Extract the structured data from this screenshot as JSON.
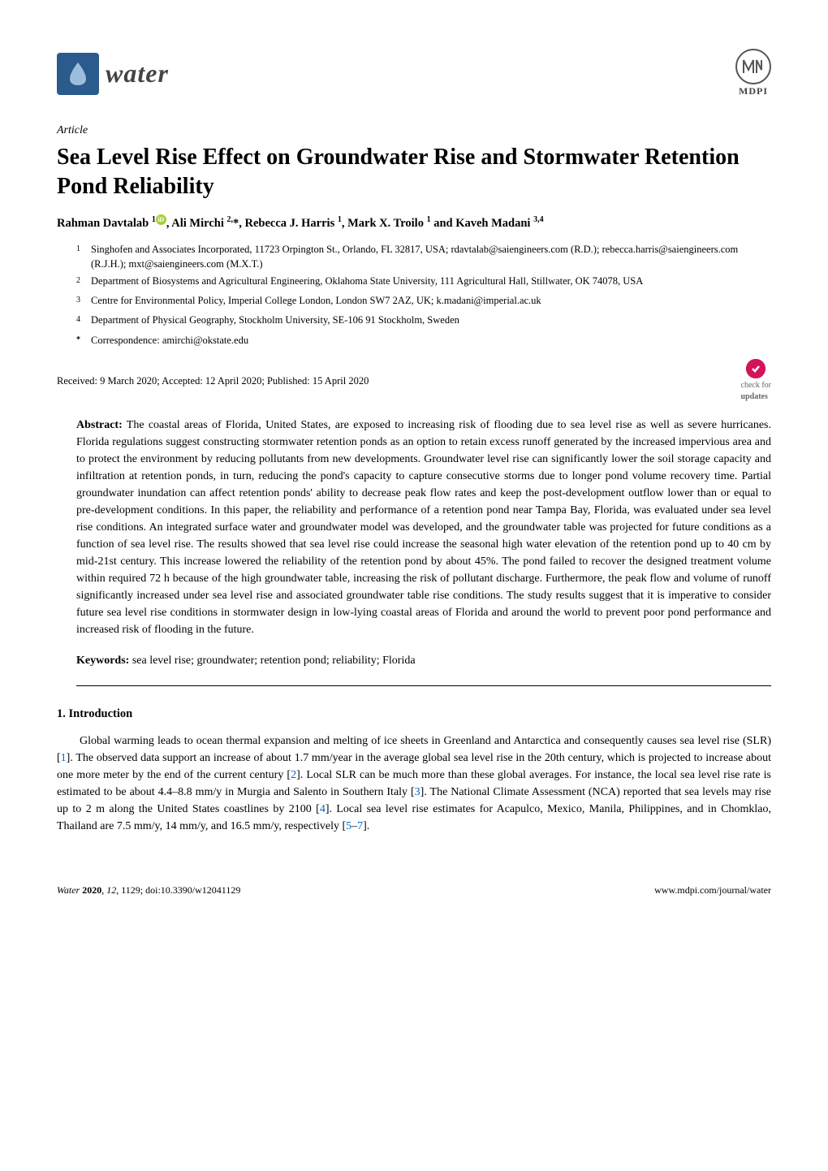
{
  "header": {
    "journal_name": "water",
    "publisher": "MDPI"
  },
  "article": {
    "type": "Article",
    "title": "Sea Level Rise Effect on Groundwater Rise and Stormwater Retention Pond Reliability",
    "authors_html": "Rahman Davtalab <sup>1</sup><span class=\"orcid\">iD</span>, Ali Mirchi <sup>2,</sup>*, Rebecca J. Harris <sup>1</sup>, Mark X. Troilo <sup>1</sup> and Kaveh Madani <sup>3,4</sup>"
  },
  "affiliations": [
    {
      "num": "1",
      "text": "Singhofen and Associates Incorporated, 11723 Orpington St., Orlando, FL 32817, USA; rdavtalab@saiengineers.com (R.D.); rebecca.harris@saiengineers.com (R.J.H.); mxt@saiengineers.com (M.X.T.)"
    },
    {
      "num": "2",
      "text": "Department of Biosystems and Agricultural Engineering, Oklahoma State University, 111 Agricultural Hall, Stillwater, OK 74078, USA"
    },
    {
      "num": "3",
      "text": "Centre for Environmental Policy, Imperial College London, London SW7 2AZ, UK; k.madani@imperial.ac.uk"
    },
    {
      "num": "4",
      "text": "Department of Physical Geography, Stockholm University, SE-106 91 Stockholm, Sweden"
    },
    {
      "num": "*",
      "text": "Correspondence: amirchi@okstate.edu"
    }
  ],
  "dates": "Received: 9 March 2020; Accepted: 12 April 2020; Published: 15 April 2020",
  "check_updates": "check for updates",
  "abstract": {
    "label": "Abstract:",
    "text": " The coastal areas of Florida, United States, are exposed to increasing risk of flooding due to sea level rise as well as severe hurricanes. Florida regulations suggest constructing stormwater retention ponds as an option to retain excess runoff generated by the increased impervious area and to protect the environment by reducing pollutants from new developments. Groundwater level rise can significantly lower the soil storage capacity and infiltration at retention ponds, in turn, reducing the pond's capacity to capture consecutive storms due to longer pond volume recovery time. Partial groundwater inundation can affect retention ponds' ability to decrease peak flow rates and keep the post-development outflow lower than or equal to pre-development conditions. In this paper, the reliability and performance of a retention pond near Tampa Bay, Florida, was evaluated under sea level rise conditions. An integrated surface water and groundwater model was developed, and the groundwater table was projected for future conditions as a function of sea level rise. The results showed that sea level rise could increase the seasonal high water elevation of the retention pond up to 40 cm by mid-21st century. This increase lowered the reliability of the retention pond by about 45%. The pond failed to recover the designed treatment volume within required 72 h because of the high groundwater table, increasing the risk of pollutant discharge. Furthermore, the peak flow and volume of runoff significantly increased under sea level rise and associated groundwater table rise conditions. The study results suggest that it is imperative to consider future sea level rise conditions in stormwater design in low-lying coastal areas of Florida and around the world to prevent poor pond performance and increased risk of flooding in the future."
  },
  "keywords": {
    "label": "Keywords:",
    "text": " sea level rise; groundwater; retention pond; reliability; Florida"
  },
  "section1": {
    "heading": "1. Introduction",
    "para1_html": "Global warming leads to ocean thermal expansion and melting of ice sheets in Greenland and Antarctica and consequently causes sea level rise (SLR) [<span class=\"ref-link\">1</span>]. The observed data support an increase of about 1.7 mm/year in the average global sea level rise in the 20th century, which is projected to increase about one more meter by the end of the current century [<span class=\"ref-link\">2</span>]. Local SLR can be much more than these global averages. For instance, the local sea level rise rate is estimated to be about 4.4–8.8 mm/y in Murgia and Salento in Southern Italy [<span class=\"ref-link\">3</span>]. The National Climate Assessment (NCA) reported that sea levels may rise up to 2 m along the United States coastlines by 2100 [<span class=\"ref-link\">4</span>]. Local sea level rise estimates for Acapulco, Mexico, Manila, Philippines, and in Chomklao, Thailand are 7.5 mm/y, 14 mm/y, and 16.5 mm/y, respectively [<span class=\"ref-link\">5</span>–<span class=\"ref-link\">7</span>]."
  },
  "footer": {
    "left": "Water 2020, 12, 1129; doi:10.3390/w12041129",
    "right": "www.mdpi.com/journal/water"
  },
  "colors": {
    "water_logo_bg": "#2b5a8c",
    "orcid_bg": "#a6ce39",
    "check_bg": "#d4145a",
    "ref_link": "#0066cc"
  }
}
